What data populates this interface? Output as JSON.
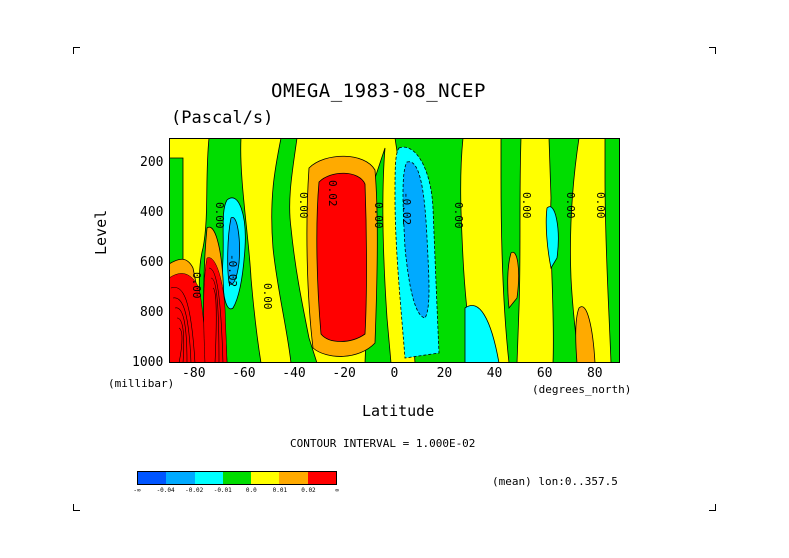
{
  "chart_data": {
    "type": "contour",
    "title": "OMEGA_1983-08_NCEP",
    "units": "(Pascal/s)",
    "xlabel": "Latitude",
    "ylabel": "Level",
    "x_units": "(degrees_north)",
    "y_units": "(millibar)",
    "xlim": [
      -90,
      90
    ],
    "ylim": [
      1000,
      100
    ],
    "x_ticks": [
      "-80",
      "-60",
      "-40",
      "-20",
      "0",
      "20",
      "40",
      "60",
      "80"
    ],
    "y_ticks": [
      "200",
      "400",
      "600",
      "800",
      "1000"
    ],
    "contour_interval_text": "CONTOUR INTERVAL = 1.000E-02",
    "mean_note": "(mean) lon:0..357.5",
    "contour_labels": [
      "0.00",
      "0.00",
      "0.00",
      "0.02",
      "0.00",
      "-0.02",
      "0.00",
      "0.00",
      "0.00",
      "0.00",
      "-0.02",
      "0.00"
    ],
    "colorbar": {
      "colors": [
        "#0055ff",
        "#00aaff",
        "#00ffff",
        "#00dd00",
        "#ffff00",
        "#ffaa00",
        "#ff0000"
      ],
      "labels": [
        "-∞",
        "-0.04",
        "-0.02",
        "-0.01",
        "0.0",
        "0.01",
        "0.02",
        "∞"
      ]
    }
  }
}
